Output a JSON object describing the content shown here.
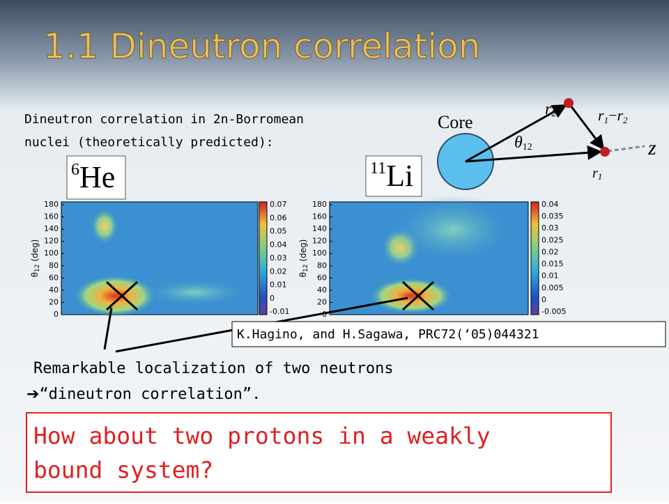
{
  "title": "1.1  Dineutron  correlation",
  "intro": [
    "Dineutron correlation in 2n-Borromean",
    "nuclei (theoretically predicted):"
  ],
  "diagram": {
    "core": "Core",
    "r2": {
      "base": "r",
      "sub": "2"
    },
    "r1r2": {
      "a": "r",
      "asub": "1",
      "minus": "−",
      "b": "r",
      "bsub": "2"
    },
    "theta": {
      "base": "θ",
      "sub": "12"
    },
    "z": "z",
    "r1": {
      "base": "r",
      "sub": "1"
    }
  },
  "plots": [
    {
      "nucleus": {
        "sup": "6",
        "base": "He"
      },
      "ylabel": {
        "base": "θ",
        "sub": "12",
        "unit": " (deg)"
      },
      "yticks": [
        0,
        20,
        40,
        60,
        80,
        100,
        120,
        140,
        160,
        180
      ],
      "cticks": [
        -0.01,
        0,
        0.01,
        0.02,
        0.03,
        0.04,
        0.05,
        0.06,
        0.07
      ]
    },
    {
      "nucleus": {
        "sup": "11",
        "base": "Li"
      },
      "ylabel": {
        "base": "θ",
        "sub": "12",
        "unit": " (deg)"
      },
      "yticks": [
        0,
        20,
        40,
        60,
        80,
        100,
        120,
        140,
        160,
        180
      ],
      "cticks": [
        -0.005,
        0,
        0.005,
        0.01,
        0.015,
        0.02,
        0.025,
        0.03,
        0.035,
        0.04
      ]
    }
  ],
  "reference": "K.Hagino, and H.Sagawa, PRC72(‘05)044321",
  "remark": [
    "Remarkable localization of two neutrons",
    "“dineutron correlation”."
  ],
  "question": [
    "How about two protons in a weakly",
    "bound system?"
  ]
}
